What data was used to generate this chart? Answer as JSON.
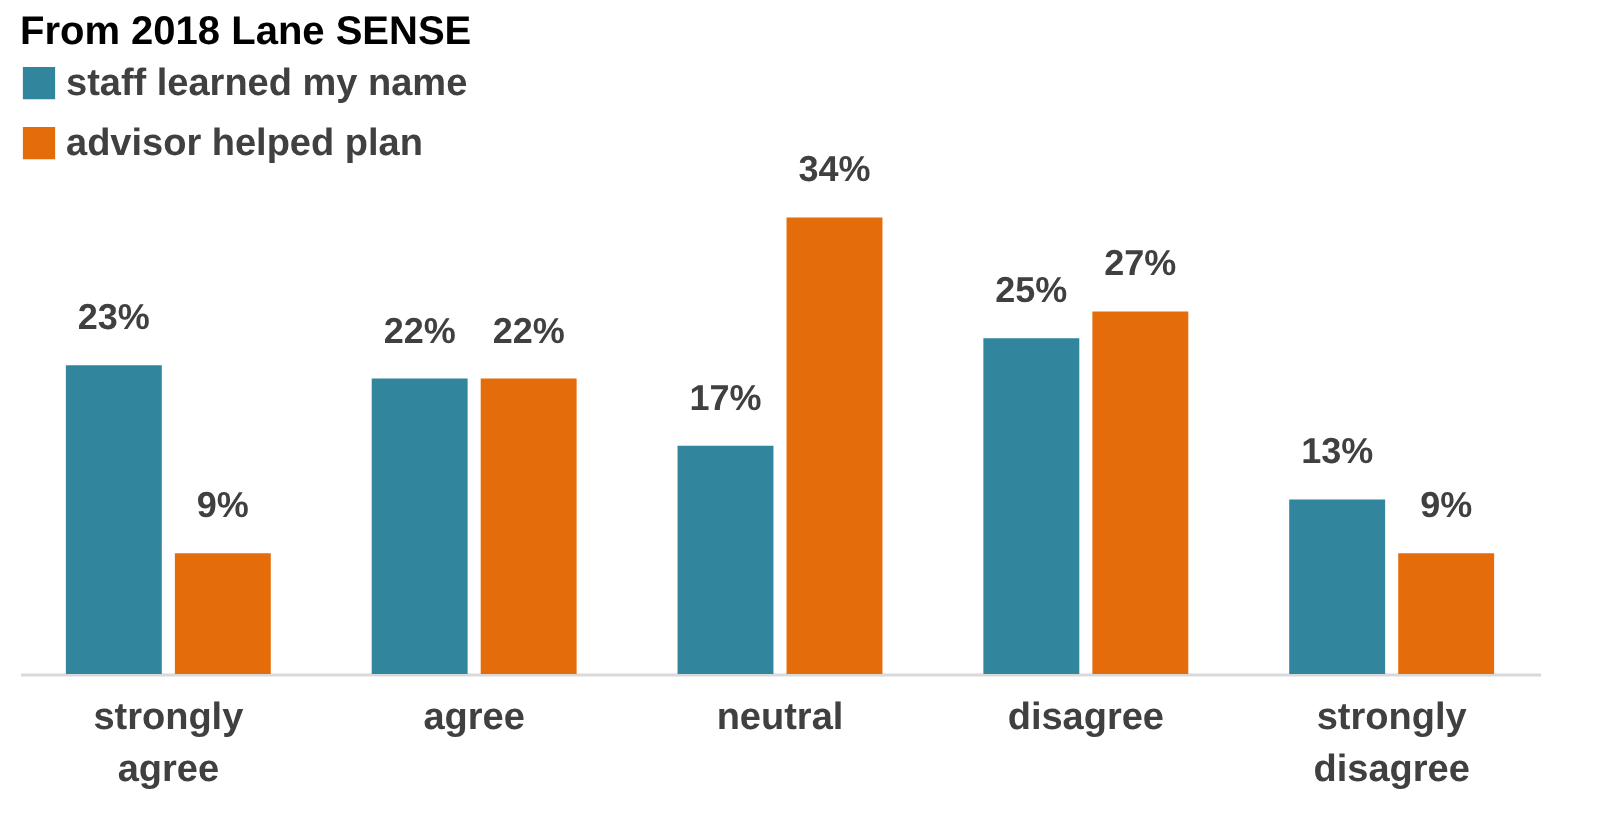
{
  "chart_data": {
    "type": "bar",
    "title": "From 2018 Lane SENSE",
    "categories": [
      "strongly agree",
      "agree",
      "neutral",
      "disagree",
      "strongly disagree"
    ],
    "series": [
      {
        "name": "staff learned my name",
        "color": "#31859c",
        "values": [
          23,
          22,
          17,
          25,
          13
        ],
        "value_labels": [
          "23%",
          "22%",
          "17%",
          "25%",
          "13%"
        ]
      },
      {
        "name": "advisor helped plan",
        "color": "#e46c0a",
        "values": [
          9,
          22,
          34,
          27,
          9
        ],
        "value_labels": [
          "9%",
          "22%",
          "34%",
          "27%",
          "9%"
        ]
      }
    ],
    "legend": "top left",
    "tick_labels": "x"
  }
}
